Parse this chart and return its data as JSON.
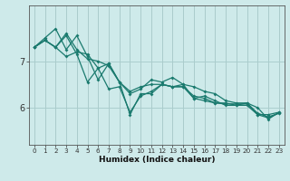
{
  "xlabel": "Humidex (Indice chaleur)",
  "bg_color": "#ceeaea",
  "grid_color": "#aacece",
  "line_color": "#1a7a6e",
  "xlim": [
    -0.5,
    23.5
  ],
  "ylim": [
    5.2,
    8.2
  ],
  "yticks": [
    6,
    7
  ],
  "xticks": [
    0,
    1,
    2,
    3,
    4,
    5,
    6,
    7,
    8,
    9,
    10,
    11,
    12,
    13,
    14,
    15,
    16,
    17,
    18,
    19,
    20,
    21,
    22,
    23
  ],
  "series": [
    [
      7.3,
      7.45,
      7.3,
      7.1,
      7.2,
      7.15,
      6.85,
      6.95,
      6.55,
      6.35,
      6.45,
      6.5,
      6.5,
      6.45,
      6.45,
      6.25,
      6.2,
      6.1,
      6.1,
      6.05,
      6.1,
      5.88,
      5.8,
      5.88
    ],
    [
      7.3,
      7.5,
      7.7,
      7.25,
      7.55,
      7.1,
      6.6,
      6.95,
      6.55,
      6.3,
      6.4,
      6.6,
      6.55,
      6.65,
      6.5,
      6.2,
      6.25,
      6.15,
      6.05,
      6.05,
      6.05,
      5.85,
      5.85,
      5.9
    ],
    [
      7.3,
      7.45,
      7.3,
      7.6,
      7.25,
      7.05,
      7.0,
      6.9,
      6.55,
      5.85,
      6.3,
      6.3,
      6.5,
      6.45,
      6.5,
      6.45,
      6.35,
      6.3,
      6.15,
      6.1,
      6.1,
      6.0,
      5.75,
      5.9
    ],
    [
      7.3,
      7.45,
      7.3,
      7.55,
      7.15,
      6.55,
      6.85,
      6.4,
      6.45,
      5.9,
      6.25,
      6.35,
      6.5,
      6.45,
      6.45,
      6.2,
      6.15,
      6.1,
      6.08,
      6.08,
      6.08,
      5.85,
      5.78,
      5.88
    ]
  ]
}
